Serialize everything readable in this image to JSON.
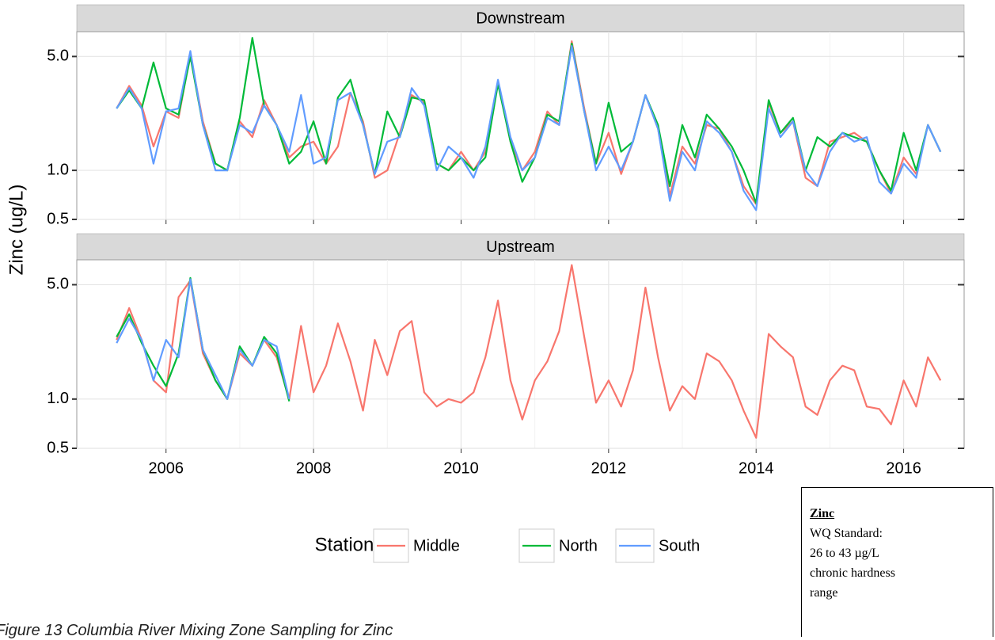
{
  "chart_data": [
    {
      "type": "line",
      "title": "Downstream",
      "x": [
        2005.33,
        2005.5,
        2005.67,
        2005.83,
        2006.0,
        2006.17,
        2006.33,
        2006.5,
        2006.67,
        2006.83,
        2007.0,
        2007.17,
        2007.33,
        2007.5,
        2007.67,
        2007.83,
        2008.0,
        2008.17,
        2008.33,
        2008.5,
        2008.67,
        2008.83,
        2009.0,
        2009.17,
        2009.33,
        2009.5,
        2009.67,
        2009.83,
        2010.0,
        2010.17,
        2010.33,
        2010.5,
        2010.67,
        2010.83,
        2011.0,
        2011.17,
        2011.33,
        2011.5,
        2011.67,
        2011.83,
        2012.0,
        2012.17,
        2012.33,
        2012.5,
        2012.67,
        2012.83,
        2013.0,
        2013.17,
        2013.33,
        2013.5,
        2013.67,
        2013.83,
        2014.0,
        2014.17,
        2014.33,
        2014.5,
        2014.67,
        2014.83,
        2015.0,
        2015.17,
        2015.33,
        2015.5,
        2015.67,
        2015.83,
        2016.0,
        2016.17,
        2016.33,
        2016.5
      ],
      "series": [
        {
          "name": "Middle",
          "color": "#F8766D",
          "values": [
            2.4,
            3.3,
            2.5,
            1.4,
            2.3,
            2.1,
            5.2,
            2.0,
            1.1,
            1.0,
            2.0,
            1.6,
            2.7,
            1.9,
            1.2,
            1.4,
            1.5,
            1.1,
            1.4,
            3.0,
            2.0,
            0.9,
            1.0,
            1.7,
            2.9,
            2.6,
            1.1,
            1.0,
            1.3,
            1.0,
            1.3,
            3.5,
            1.5,
            1.0,
            1.3,
            2.3,
            1.9,
            6.2,
            2.4,
            1.1,
            1.7,
            0.95,
            1.5,
            2.9,
            1.8,
            0.7,
            1.4,
            1.1,
            1.9,
            1.8,
            1.3,
            0.8,
            0.62,
            2.6,
            1.7,
            2.0,
            0.9,
            0.8,
            1.5,
            1.6,
            1.7,
            1.5,
            1.0,
            0.72,
            1.2,
            0.95,
            1.9,
            1.3
          ]
        },
        {
          "name": "North",
          "color": "#00BA38",
          "values": [
            2.4,
            3.1,
            2.4,
            4.6,
            2.4,
            2.2,
            5.0,
            1.9,
            1.1,
            1.0,
            2.1,
            6.5,
            2.5,
            1.9,
            1.1,
            1.3,
            2.0,
            1.1,
            2.8,
            3.6,
            1.9,
            0.95,
            2.3,
            1.6,
            2.8,
            2.7,
            1.1,
            1.0,
            1.2,
            1.0,
            1.2,
            3.4,
            1.5,
            0.85,
            1.2,
            2.2,
            2.0,
            6.0,
            2.3,
            1.1,
            2.6,
            1.3,
            1.5,
            2.9,
            1.9,
            0.8,
            1.9,
            1.2,
            2.2,
            1.8,
            1.4,
            1.0,
            0.63,
            2.7,
            1.7,
            2.1,
            1.0,
            1.6,
            1.4,
            1.7,
            1.6,
            1.5,
            1.0,
            0.75,
            1.7,
            1.0,
            1.9,
            1.3
          ]
        },
        {
          "name": "South",
          "color": "#619CFF",
          "values": [
            2.4,
            3.2,
            2.4,
            1.1,
            2.3,
            2.4,
            5.4,
            1.9,
            1.0,
            1.0,
            1.9,
            1.7,
            2.5,
            1.9,
            1.3,
            2.9,
            1.1,
            1.2,
            2.7,
            3.0,
            1.9,
            0.95,
            1.5,
            1.6,
            3.2,
            2.5,
            1.0,
            1.4,
            1.2,
            0.9,
            1.4,
            3.6,
            1.6,
            1.0,
            1.2,
            2.1,
            1.9,
            5.8,
            2.3,
            1.0,
            1.4,
            1.0,
            1.5,
            2.9,
            1.8,
            0.65,
            1.3,
            1.0,
            2.0,
            1.7,
            1.3,
            0.75,
            0.57,
            2.4,
            1.6,
            2.0,
            1.0,
            0.8,
            1.3,
            1.7,
            1.5,
            1.6,
            0.85,
            0.72,
            1.1,
            0.9,
            1.9,
            1.3
          ]
        }
      ],
      "xlim": [
        2004.79,
        2016.82
      ],
      "xticks": [
        2006,
        2008,
        2010,
        2012,
        2014,
        2016
      ],
      "ylim": [
        0.5,
        7.1
      ],
      "log_y": true,
      "yticks": [
        {
          "value": 0.5,
          "label": "0.5"
        },
        {
          "value": 1,
          "label": "1.0"
        },
        {
          "value": 5,
          "label": "5.0"
        }
      ],
      "grid": true
    },
    {
      "type": "line",
      "title": "Upstream",
      "x": [
        2005.33,
        2005.5,
        2005.67,
        2005.83,
        2006.0,
        2006.17,
        2006.33,
        2006.5,
        2006.67,
        2006.83,
        2007.0,
        2007.17,
        2007.33,
        2007.5,
        2007.67,
        2007.83,
        2008.0,
        2008.17,
        2008.33,
        2008.5,
        2008.67,
        2008.83,
        2009.0,
        2009.17,
        2009.33,
        2009.5,
        2009.67,
        2009.83,
        2010.0,
        2010.17,
        2010.33,
        2010.5,
        2010.67,
        2010.83,
        2011.0,
        2011.17,
        2011.33,
        2011.5,
        2011.67,
        2011.83,
        2012.0,
        2012.17,
        2012.33,
        2012.5,
        2012.67,
        2012.83,
        2013.0,
        2013.17,
        2013.33,
        2013.5,
        2013.67,
        2013.83,
        2014.0,
        2014.17,
        2014.33,
        2014.5,
        2014.67,
        2014.83,
        2015.0,
        2015.17,
        2015.33,
        2015.5,
        2015.67,
        2015.83,
        2016.0,
        2016.17,
        2016.33,
        2016.5
      ],
      "series": [
        {
          "name": "Middle",
          "color": "#F8766D",
          "values": [
            2.3,
            3.6,
            2.3,
            1.3,
            1.1,
            4.2,
            5.3,
            1.9,
            1.3,
            1.0,
            1.9,
            1.6,
            2.3,
            1.8,
            1.0,
            2.8,
            1.1,
            1.6,
            2.9,
            1.7,
            0.85,
            2.3,
            1.4,
            2.6,
            3.0,
            1.1,
            0.9,
            1.0,
            0.95,
            1.1,
            1.8,
            4.0,
            1.3,
            0.75,
            1.3,
            1.7,
            2.6,
            6.6,
            2.4,
            0.95,
            1.3,
            0.9,
            1.5,
            4.8,
            1.8,
            0.85,
            1.2,
            1.0,
            1.9,
            1.7,
            1.3,
            0.85,
            0.58,
            2.5,
            2.1,
            1.8,
            0.9,
            0.8,
            1.3,
            1.6,
            1.5,
            0.9,
            0.87,
            0.7,
            1.3,
            0.9,
            1.8,
            1.3
          ]
        },
        {
          "name": "North",
          "color": "#00BA38",
          "values": [
            2.4,
            3.3,
            2.2,
            1.6,
            1.2,
            1.9,
            5.5,
            2.0,
            1.3,
            1.0,
            2.1,
            1.6,
            2.4,
            1.9,
            0.97,
            null,
            null,
            null,
            null,
            null,
            null,
            null,
            null,
            null,
            null,
            null,
            null,
            null,
            null,
            null,
            null,
            null,
            null,
            null,
            null,
            null,
            null,
            null,
            null,
            null,
            null,
            null,
            null,
            null,
            null,
            null,
            null,
            null,
            null,
            null,
            null,
            null,
            null,
            null,
            null,
            null,
            null,
            null,
            null,
            null,
            null,
            null,
            null,
            null,
            null,
            null,
            null,
            null
          ]
        },
        {
          "name": "South",
          "color": "#619CFF",
          "values": [
            2.2,
            3.1,
            2.3,
            1.3,
            2.3,
            1.8,
            5.4,
            2.0,
            1.4,
            1.0,
            2.0,
            1.6,
            2.3,
            2.1,
            1.0,
            null,
            null,
            null,
            null,
            null,
            null,
            null,
            null,
            null,
            null,
            null,
            null,
            null,
            null,
            null,
            null,
            null,
            null,
            null,
            null,
            null,
            null,
            null,
            null,
            null,
            null,
            null,
            null,
            null,
            null,
            null,
            null,
            null,
            null,
            null,
            null,
            null,
            null,
            null,
            null,
            null,
            null,
            null,
            null,
            null,
            null,
            null,
            null,
            null,
            null,
            null,
            null,
            null
          ]
        }
      ],
      "xlim": [
        2004.79,
        2016.82
      ],
      "xticks": [
        2006,
        2008,
        2010,
        2012,
        2014,
        2016
      ],
      "ylim": [
        0.5,
        7.1
      ],
      "log_y": true,
      "yticks": [
        {
          "value": 0.5,
          "label": "0.5"
        },
        {
          "value": 1,
          "label": "1.0"
        },
        {
          "value": 5,
          "label": "5.0"
        }
      ],
      "grid": true
    }
  ],
  "y_axis_label": "Zinc (ug/L)",
  "legend_title": "Station",
  "caption": "Figure 13 Columbia River Mixing Zone Sampling for Zinc",
  "note": {
    "title": "Zinc",
    "lines": [
      "WQ Standard:",
      "26 to 43 µg/L",
      "chronic hardness",
      "range"
    ]
  }
}
